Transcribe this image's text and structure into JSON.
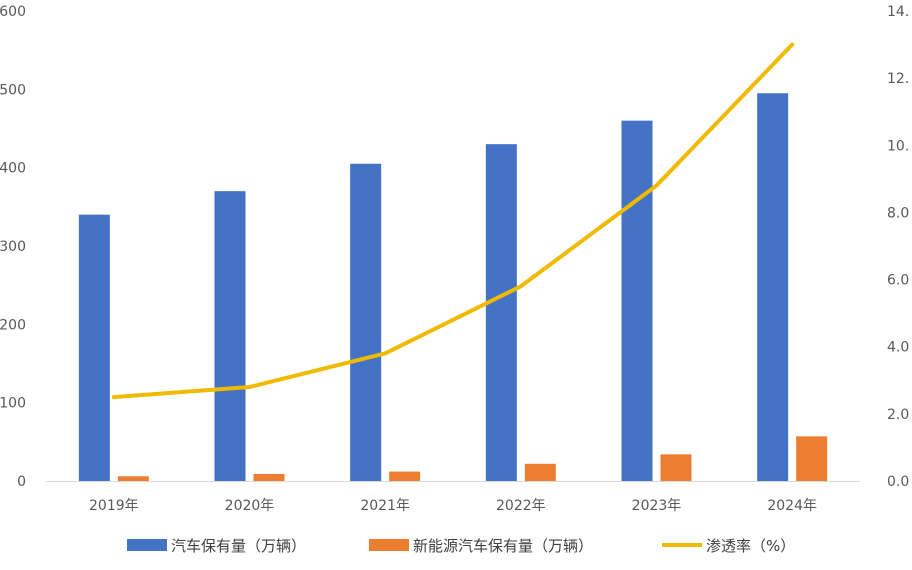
{
  "chart_data": {
    "type": "bar",
    "categories": [
      "2019年",
      "2020年",
      "2021年",
      "2022年",
      "2023年",
      "2024年"
    ],
    "series": [
      {
        "name": "汽车保有量（万辆）",
        "type": "bar",
        "axis": "left",
        "color": "#4472C4",
        "values": [
          34000,
          37000,
          40500,
          43000,
          46000,
          49500
        ]
      },
      {
        "name": "新能源汽车保有量（万辆）",
        "type": "bar",
        "axis": "left",
        "color": "#ED7D31",
        "values": [
          600,
          900,
          1200,
          2200,
          3400,
          5700
        ]
      },
      {
        "name": "渗透率（%）",
        "type": "line",
        "axis": "right",
        "color": "#F0BA00",
        "values": [
          2.5,
          2.8,
          3.8,
          5.8,
          8.8,
          13.0
        ]
      }
    ],
    "y_left": {
      "ticks": [
        "0",
        "100",
        "200",
        "300",
        "400",
        "500",
        "600"
      ],
      "ylim": [
        0,
        60000
      ]
    },
    "y_right": {
      "ticks": [
        "0.0",
        "2.0",
        "4.0",
        "6.0",
        "8.0",
        "10.",
        "12.",
        "14."
      ],
      "ylim": [
        0,
        14
      ]
    },
    "legend_position": "bottom",
    "grid": false
  }
}
